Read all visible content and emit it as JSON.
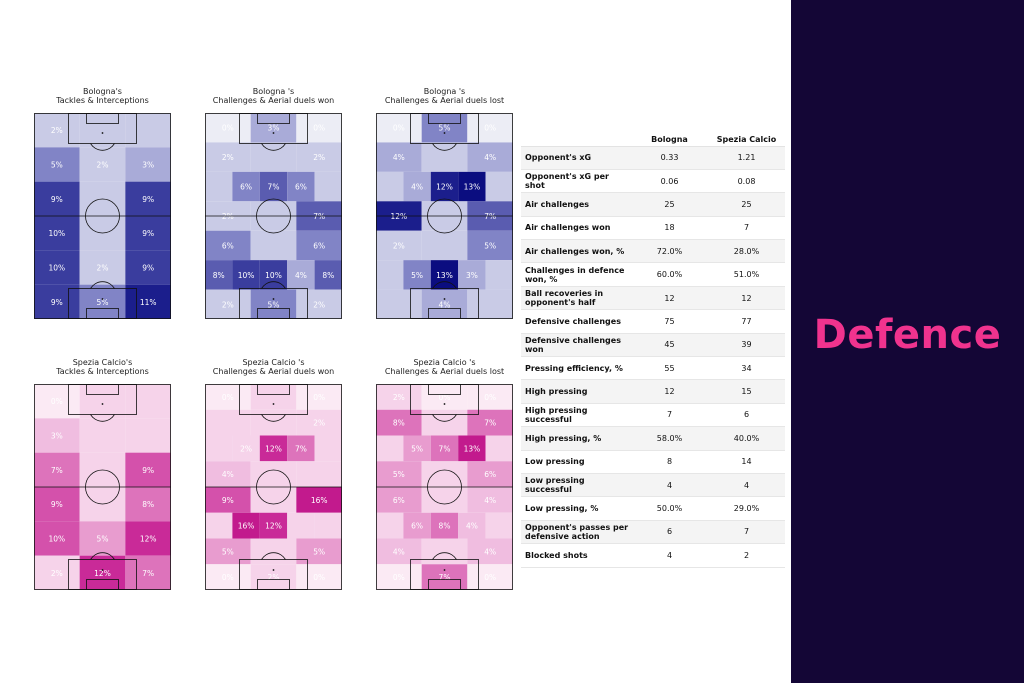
{
  "panel": {
    "title": "Defence"
  },
  "chart_data": [
    {
      "type": "heatmap",
      "title": "Bologna's\nTackles & Interceptions",
      "colormap": "blue",
      "cells": [
        [
          "2%",
          "",
          ""
        ],
        [
          "5%",
          "2%",
          "3%"
        ],
        [
          "9%",
          "",
          "9%"
        ],
        [
          "10%",
          "",
          "9%"
        ],
        [
          "10%",
          "2%",
          "9%"
        ],
        [
          "9%",
          "5%",
          "11%"
        ]
      ],
      "levels": [
        [
          0.06,
          0.06,
          0.06
        ],
        [
          0.4,
          0.02,
          0.4
        ],
        [
          0.8,
          0.0,
          0.8
        ],
        [
          0.88,
          0.22,
          0.8
        ],
        [
          0.88,
          0.22,
          0.8
        ],
        [
          0.8,
          0.65,
          1.0
        ]
      ]
    },
    {
      "type": "heatmap",
      "title": "Bologna 's\nChallenges & Aerial duels won",
      "colormap": "blue",
      "cells": [
        [
          "0%",
          "3%",
          "0%"
        ],
        [
          "2%",
          "",
          "2%"
        ],
        [
          "",
          "6%",
          "7%",
          "6%",
          ""
        ],
        [
          "2%",
          "",
          "7%"
        ],
        [
          "6%",
          "",
          "6%"
        ],
        [
          "8%",
          "10%",
          "10%",
          "4%",
          "8%"
        ],
        [
          "2%",
          "5%",
          "2%"
        ]
      ],
      "layout": "five-column"
    },
    {
      "type": "heatmap",
      "title": "Bologna 's\nChallenges & Aerial duels lost",
      "colormap": "blue",
      "cells": [
        [
          "0%",
          "5%",
          "0%"
        ],
        [
          "4%",
          "",
          "4%"
        ],
        [
          "",
          "4%",
          "12%",
          "13%",
          ""
        ],
        [
          "12%",
          "",
          "7%"
        ],
        [
          "2%",
          "",
          "5%"
        ],
        [
          "",
          "5%",
          "13%",
          "3%",
          ""
        ],
        [
          "",
          "4%",
          ""
        ]
      ],
      "layout": "five-column"
    },
    {
      "type": "heatmap",
      "title": "Spezia Calcio's\nTackles & Interceptions",
      "colormap": "pink",
      "cells": [
        [
          "0%",
          "",
          ""
        ],
        [
          "3%",
          "",
          ""
        ],
        [
          "7%",
          "",
          "9%"
        ],
        [
          "9%",
          "",
          "8%"
        ],
        [
          "10%",
          "5%",
          "12%"
        ],
        [
          "2%",
          "12%",
          "7%"
        ]
      ]
    },
    {
      "type": "heatmap",
      "title": "Spezia Calcio 's\nChallenges & Aerial duels won",
      "colormap": "pink",
      "cells": [
        [
          "0%",
          "",
          "0%"
        ],
        [
          "",
          "",
          "2%"
        ],
        [
          "",
          "2%",
          "12%",
          "7%",
          ""
        ],
        [
          "4%",
          "",
          ""
        ],
        [
          "9%",
          "",
          "16%"
        ],
        [
          "",
          "16%",
          "12%",
          "",
          ""
        ],
        [
          "5%",
          "",
          "5%"
        ],
        [
          "0%",
          "2%",
          "0%"
        ]
      ],
      "layout": "five-column"
    },
    {
      "type": "heatmap",
      "title": "Spezia Calcio 's\nChallenges & Aerial duels lost",
      "colormap": "pink",
      "cells": [
        [
          "2%",
          "0%",
          "0%"
        ],
        [
          "8%",
          "",
          "7%"
        ],
        [
          "",
          "5%",
          "7%",
          "13%",
          ""
        ],
        [
          "5%",
          "",
          "6%"
        ],
        [
          "6%",
          "",
          "4%"
        ],
        [
          "",
          "6%",
          "8%",
          "4%",
          ""
        ],
        [
          "4%",
          "",
          "4%"
        ],
        [
          "0%",
          "7%",
          "0%"
        ]
      ],
      "layout": "five-column"
    }
  ],
  "table": {
    "headers": [
      "",
      "Bologna",
      "Spezia Calcio"
    ],
    "rows": [
      [
        "Opponent's xG",
        "0.33",
        "1.21"
      ],
      [
        "Opponent's xG per shot",
        "0.06",
        "0.08"
      ],
      [
        "Air challenges",
        "25",
        "25"
      ],
      [
        "Air challenges won",
        "18",
        "7"
      ],
      [
        "Air challenges won, %",
        "72.0%",
        "28.0%"
      ],
      [
        "Challenges in defence won, %",
        "60.0%",
        "51.0%"
      ],
      [
        "Ball recoveries in opponent's half",
        "12",
        "12"
      ],
      [
        "Defensive challenges",
        "75",
        "77"
      ],
      [
        "Defensive challenges won",
        "45",
        "39"
      ],
      [
        "Pressing efficiency, %",
        "55",
        "34"
      ],
      [
        "High pressing",
        "12",
        "15"
      ],
      [
        "High pressing successful",
        "7",
        "6"
      ],
      [
        "High pressing, %",
        "58.0%",
        "40.0%"
      ],
      [
        "Low pressing",
        "8",
        "14"
      ],
      [
        "Low pressing successful",
        "4",
        "4"
      ],
      [
        "Low pressing, %",
        "50.0%",
        "29.0%"
      ],
      [
        "Opponent's passes per defensive action",
        "6",
        "7"
      ],
      [
        "Blocked shots",
        "4",
        "2"
      ]
    ]
  }
}
